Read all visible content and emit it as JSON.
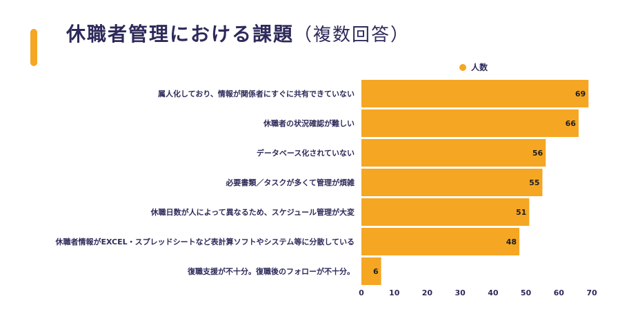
{
  "header": {
    "title_main": "休職者管理における課題",
    "title_sub": "（複数回答）"
  },
  "colors": {
    "accent": "#f5a623",
    "text": "#2d2a5a"
  },
  "chart_data": {
    "type": "bar",
    "orientation": "horizontal",
    "title": "休職者管理における課題（複数回答）",
    "legend_position": "top-right",
    "categories": [
      "属人化しており、情報が関係者にすぐに共有できていない",
      "休職者の状況確認が難しい",
      "データベース化されていない",
      "必要書類／タスクが多くて管理が煩雑",
      "休職日数が人によって異なるため、スケジュール管理が大変",
      "休職者情報がEXCEL・スプレッドシートなど表計算ソフトやシステム等に分散している",
      "復職支援が不十分。復職後のフォローが不十分。"
    ],
    "series": [
      {
        "name": "人数",
        "values": [
          69,
          66,
          56,
          55,
          51,
          48,
          6
        ]
      }
    ],
    "xlim": [
      0,
      70
    ],
    "xticks": [
      0,
      10,
      20,
      30,
      40,
      50,
      60,
      70
    ],
    "grid": false
  }
}
